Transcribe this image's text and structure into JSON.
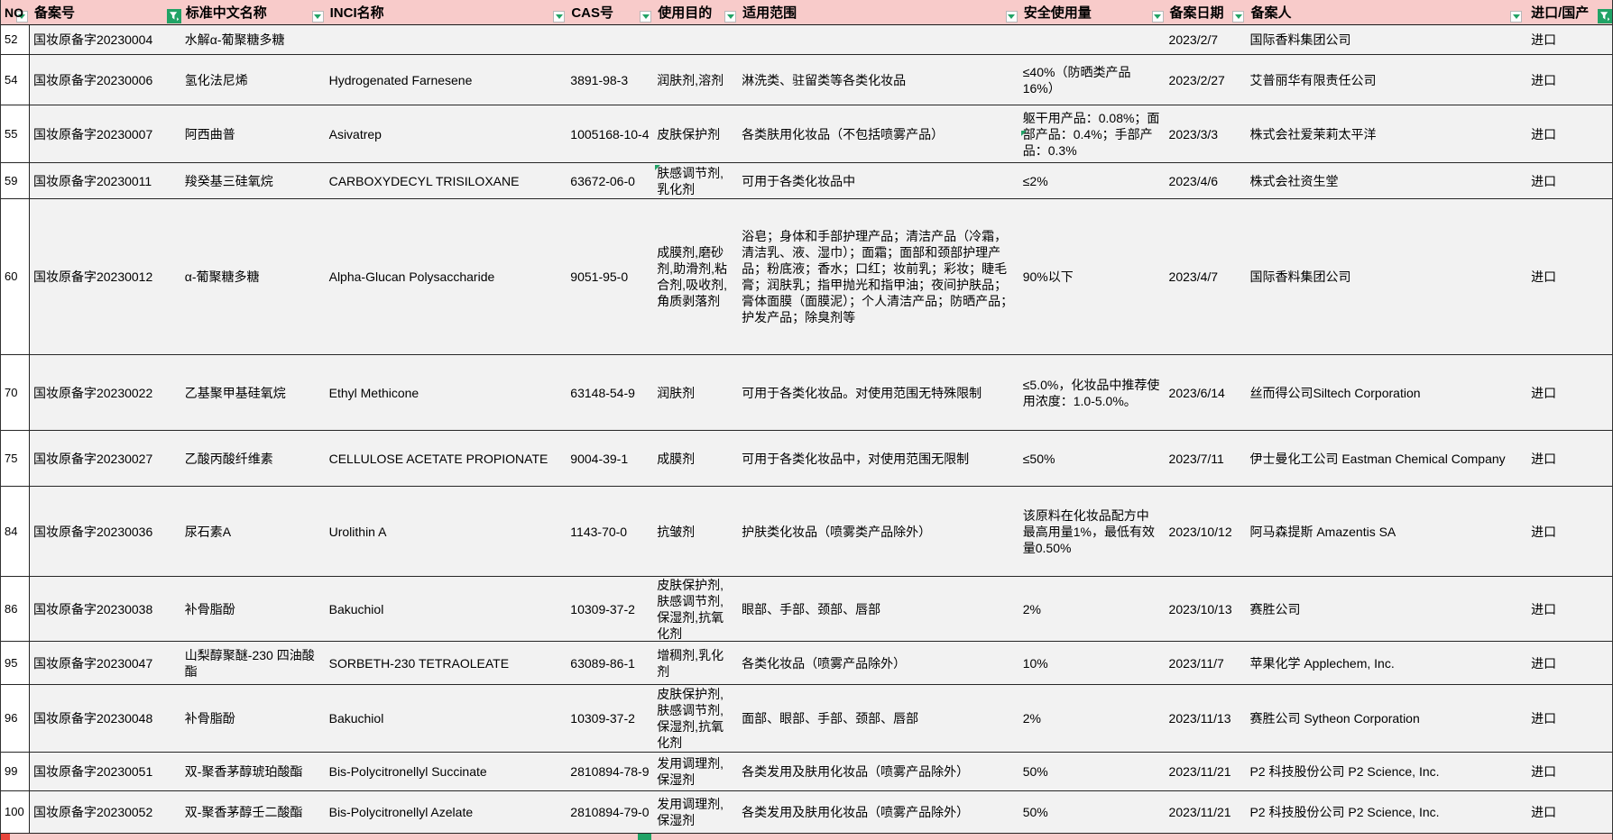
{
  "app": {
    "view": "cosmetic-ingredient-filing-spreadsheet"
  },
  "colors": {
    "header_bg": "#f8cbca",
    "row_bg": "#f2f2f2",
    "number_column_bg": "#ffffff",
    "filter_green": "#21a366",
    "grid_line": "#262626",
    "next_header_red_cell": "#e8453c"
  },
  "icons": {
    "filter_dropdown": "chevron-down",
    "filter_applied": "funnel"
  },
  "table": {
    "columns": [
      {
        "id": "no",
        "label": "NO",
        "filter": "dropdown"
      },
      {
        "id": "reg_no",
        "label": "备案号",
        "filter": "filtered"
      },
      {
        "id": "cn_name",
        "label": "标准中文名称",
        "filter": "dropdown"
      },
      {
        "id": "inci",
        "label": "INCI名称",
        "filter": "dropdown"
      },
      {
        "id": "cas",
        "label": "CAS号",
        "filter": "dropdown"
      },
      {
        "id": "purpose",
        "label": "使用目的",
        "filter": "dropdown"
      },
      {
        "id": "scope",
        "label": "适用范围",
        "filter": "dropdown"
      },
      {
        "id": "safe_use",
        "label": "安全使用量",
        "filter": "dropdown"
      },
      {
        "id": "date",
        "label": "备案日期",
        "filter": "dropdown"
      },
      {
        "id": "registrant",
        "label": "备案人",
        "filter": "dropdown"
      },
      {
        "id": "origin",
        "label": "进口/国产",
        "filter": "filtered"
      }
    ],
    "rows": [
      {
        "no": "52",
        "reg_no": "国妆原备字20230004",
        "cn_name": "水解α-葡聚糖多糖",
        "inci": "",
        "cas": "",
        "purpose": "",
        "scope": "",
        "safe_use": "",
        "date": "2023/2/7",
        "registrant": "国际香料集团公司",
        "origin": "进口"
      },
      {
        "no": "54",
        "reg_no": "国妆原备字20230006",
        "cn_name": "氢化法尼烯",
        "inci": "Hydrogenated Farnesene",
        "cas": "3891-98-3",
        "purpose": "润肤剂,溶剂",
        "scope": "淋洗类、驻留类等各类化妆品",
        "safe_use": "≤40%（防晒类产品16%）",
        "date": "2023/2/27",
        "registrant": "艾普丽华有限责任公司",
        "origin": "进口"
      },
      {
        "no": "55",
        "reg_no": "国妆原备字20230007",
        "cn_name": "阿西曲普",
        "inci": "Asivatrep",
        "cas": "1005168-10-4",
        "purpose": "皮肤保护剂",
        "scope": "各类肤用化妆品（不包括喷雾产品）",
        "safe_use": "躯干用产品：0.08%；面部产品：0.4%；手部产品：0.3%",
        "date": "2023/3/3",
        "registrant": "株式会社爱茉莉太平洋",
        "origin": "进口",
        "flags": {
          "safe_mark": true
        }
      },
      {
        "no": "59",
        "reg_no": "国妆原备字20230011",
        "cn_name": "羧癸基三硅氧烷",
        "inci": "CARBOXYDECYL TRISILOXANE",
        "cas": "63672-06-0",
        "purpose": "肤感调节剂,乳化剂",
        "scope": "可用于各类化妆品中",
        "safe_use": "≤2%",
        "date": "2023/4/6",
        "registrant": "株式会社资生堂",
        "origin": "进口",
        "flags": {
          "purpose_mark": true
        }
      },
      {
        "no": "60",
        "reg_no": "国妆原备字20230012",
        "cn_name": "α-葡聚糖多糖",
        "inci": "Alpha-Glucan Polysaccharide",
        "cas": "9051-95-0",
        "purpose": "成膜剂,磨砂剂,助滑剂,粘合剂,吸收剂,角质剥落剂",
        "scope": "浴皂；身体和手部护理产品；清洁产品（冷霜，清洁乳、液、湿巾）；面霜；面部和颈部护理产品；粉底液；香水；口红；妆前乳；彩妆；睫毛膏；润肤乳；指甲抛光和指甲油；夜间护肤品；膏体面膜（面膜泥）；个人清洁产品；防晒产品；护发产品；除臭剂等",
        "safe_use": "90%以下",
        "date": "2023/4/7",
        "registrant": "国际香料集团公司",
        "origin": "进口"
      },
      {
        "no": "70",
        "reg_no": "国妆原备字20230022",
        "cn_name": "乙基聚甲基硅氧烷",
        "inci": "Ethyl Methicone",
        "cas": "63148-54-9",
        "purpose": "润肤剂",
        "scope": "可用于各类化妆品。对使用范围无特殊限制",
        "safe_use": "≤5.0%，化妆品中推荐使用浓度：1.0-5.0%。",
        "date": "2023/6/14",
        "registrant": "丝而得公司Siltech Corporation",
        "origin": "进口"
      },
      {
        "no": "75",
        "reg_no": "国妆原备字20230027",
        "cn_name": "乙酸丙酸纤维素",
        "inci": "CELLULOSE ACETATE PROPIONATE",
        "cas": "9004-39-1",
        "purpose": "成膜剂",
        "scope": "可用于各类化妆品中，对使用范围无限制",
        "safe_use": "≤50%",
        "date": "2023/7/11",
        "registrant": "伊士曼化工公司 Eastman Chemical Company",
        "origin": "进口"
      },
      {
        "no": "84",
        "reg_no": "国妆原备字20230036",
        "cn_name": "尿石素A",
        "inci": "Urolithin A",
        "cas": "1143-70-0",
        "purpose": "抗皱剂",
        "scope": "护肤类化妆品（喷雾类产品除外）",
        "safe_use": "该原料在化妆品配方中最高用量1%，最低有效量0.50%",
        "date": "2023/10/12",
        "registrant": "阿马森提斯 Amazentis SA",
        "origin": "进口"
      },
      {
        "no": "86",
        "reg_no": "国妆原备字20230038",
        "cn_name": "补骨脂酚",
        "inci": "Bakuchiol",
        "cas": "10309-37-2",
        "purpose": "皮肤保护剂,肤感调节剂,保湿剂,抗氧化剂",
        "scope": "眼部、手部、颈部、唇部",
        "safe_use": "2%",
        "date": "2023/10/13",
        "registrant": "赛胜公司",
        "origin": "进口"
      },
      {
        "no": "95",
        "reg_no": "国妆原备字20230047",
        "cn_name": "山梨醇聚醚-230 四油酸酯",
        "inci": "SORBETH-230 TETRAOLEATE",
        "cas": "63089-86-1",
        "purpose": "增稠剂,乳化剂",
        "scope": "各类化妆品（喷雾产品除外）",
        "safe_use": "10%",
        "date": "2023/11/7",
        "registrant": "苹果化学 Applechem, Inc.",
        "origin": "进口"
      },
      {
        "no": "96",
        "reg_no": "国妆原备字20230048",
        "cn_name": "补骨脂酚",
        "inci": "Bakuchiol",
        "cas": "10309-37-2",
        "purpose": "皮肤保护剂,肤感调节剂,保湿剂,抗氧化剂",
        "scope": "面部、眼部、手部、颈部、唇部",
        "safe_use": "2%",
        "date": "2023/11/13",
        "registrant": "赛胜公司 Sytheon Corporation",
        "origin": "进口"
      },
      {
        "no": "99",
        "reg_no": "国妆原备字20230051",
        "cn_name": "双-聚香茅醇琥珀酸酯",
        "inci": "Bis-Polycitronellyl Succinate",
        "cas": "2810894-78-9",
        "purpose": "发用调理剂,保湿剂",
        "scope": "各类发用及肤用化妆品（喷雾产品除外）",
        "safe_use": "50%",
        "date": "2023/11/21",
        "registrant": "P2 科技股份公司  P2 Science, Inc.",
        "origin": "进口"
      },
      {
        "no": "100",
        "reg_no": "国妆原备字20230052",
        "cn_name": "双-聚香茅醇壬二酸酯",
        "inci": "Bis-Polycitronellyl Azelate",
        "cas": "2810894-79-0",
        "purpose": "发用调理剂,保湿剂",
        "scope": "各类发用及肤用化妆品（喷雾产品除外）",
        "safe_use": "50%",
        "date": "2023/11/21",
        "registrant": "P2 科技股份公司  P2 Science, Inc.",
        "origin": "进口"
      }
    ]
  }
}
